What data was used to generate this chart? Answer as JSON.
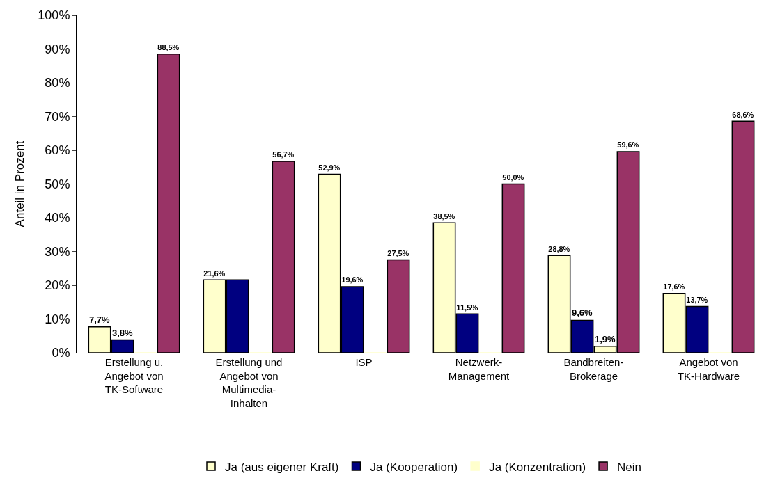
{
  "chart_data": {
    "type": "bar",
    "ylabel": "Anteil in Prozent",
    "categories": [
      "Erstellung u.\nAngebot von\nTK-Software",
      "Erstellung und\nAngebot von\nMultimedia-\nInhalten",
      "ISP",
      "Netzwerk-\nManagement",
      "Bandbreiten-\nBrokerage",
      "Angebot von\nTK-Hardware"
    ],
    "series": [
      {
        "name": "Ja (aus eigener Kraft)",
        "color": "#ffffcc",
        "values": [
          7.7,
          21.6,
          52.9,
          38.5,
          28.8,
          17.6
        ],
        "value_labels": [
          "7,7%",
          "21,6%",
          "52,9%",
          "38,5%",
          "28,8%",
          "17,6%"
        ]
      },
      {
        "name": "Ja (Kooperation)",
        "color": "#000080",
        "values": [
          3.8,
          21.6,
          19.6,
          11.5,
          9.6,
          13.7
        ],
        "value_labels": [
          "3,8%",
          null,
          "19,6%",
          "11,5%",
          "9,6%",
          "13,7%"
        ]
      },
      {
        "name": "Ja (Konzentration)",
        "color": "#ffffcc",
        "values": [
          0,
          0,
          0,
          0,
          1.9,
          0
        ],
        "value_labels": [
          null,
          null,
          null,
          null,
          "1,9%",
          null
        ]
      },
      {
        "name": "Nein",
        "color": "#993366",
        "values": [
          88.5,
          56.7,
          27.5,
          50.0,
          59.6,
          68.6
        ],
        "value_labels": [
          "88,5%",
          "56,7%",
          "27,5%",
          "50,0%",
          "59,6%",
          "68,6%"
        ]
      }
    ],
    "ylim": [
      0,
      100
    ],
    "yticks": [
      {
        "value": 0,
        "label": "0%"
      },
      {
        "value": 10,
        "label": "10%"
      },
      {
        "value": 20,
        "label": "20%"
      },
      {
        "value": 30,
        "label": "30%"
      },
      {
        "value": 40,
        "label": "40%"
      },
      {
        "value": 50,
        "label": "50%"
      },
      {
        "value": 60,
        "label": "60%"
      },
      {
        "value": 70,
        "label": "70%"
      },
      {
        "value": 80,
        "label": "80%"
      },
      {
        "value": 90,
        "label": "90%"
      },
      {
        "value": 100,
        "label": "100%"
      }
    ],
    "legend": "bottom"
  }
}
